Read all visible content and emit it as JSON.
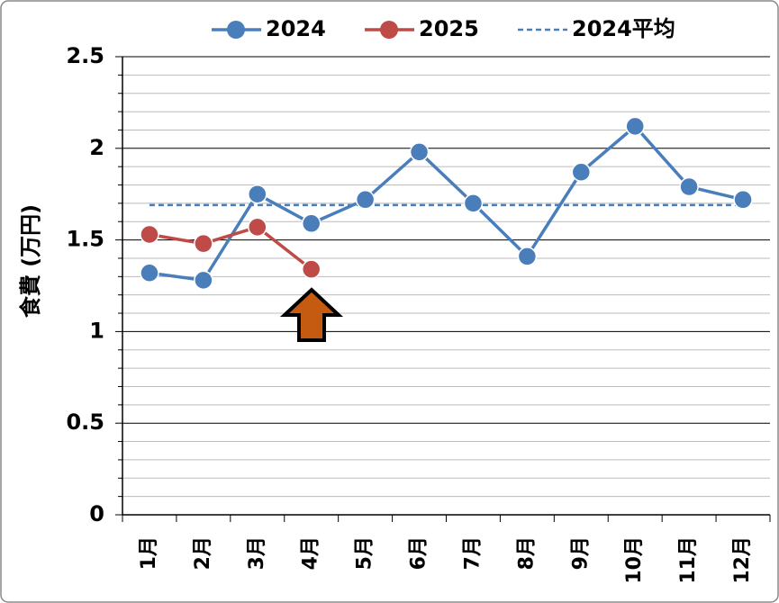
{
  "chart_data": {
    "type": "line",
    "ylabel": "食費 (万円)",
    "categories": [
      "1月",
      "2月",
      "3月",
      "4月",
      "5月",
      "6月",
      "7月",
      "8月",
      "9月",
      "10月",
      "11月",
      "12月"
    ],
    "series": [
      {
        "name": "2024",
        "color": "#4a7ebb",
        "values": [
          1.32,
          1.28,
          1.75,
          1.59,
          1.72,
          1.98,
          1.7,
          1.41,
          1.87,
          2.12,
          1.79,
          1.72
        ]
      },
      {
        "name": "2025",
        "color": "#be4b48",
        "values": [
          1.53,
          1.48,
          1.57,
          1.34,
          null,
          null,
          null,
          null,
          null,
          null,
          null,
          null
        ]
      }
    ],
    "reference_line": {
      "name": "2024平均",
      "value": 1.69,
      "color": "#4a7ebb",
      "style": "dashed"
    },
    "ylim": [
      0,
      2.5
    ],
    "yticks": [
      0,
      0.5,
      1,
      1.5,
      2,
      2.5
    ],
    "yminor_ticks": [
      0.1,
      0.2,
      0.3,
      0.4,
      0.6,
      0.7,
      0.8,
      0.9,
      1.1,
      1.2,
      1.3,
      1.4,
      1.6,
      1.7,
      1.8,
      1.9,
      2.1,
      2.2,
      2.3,
      2.4
    ],
    "grid": true,
    "legend": "top"
  }
}
